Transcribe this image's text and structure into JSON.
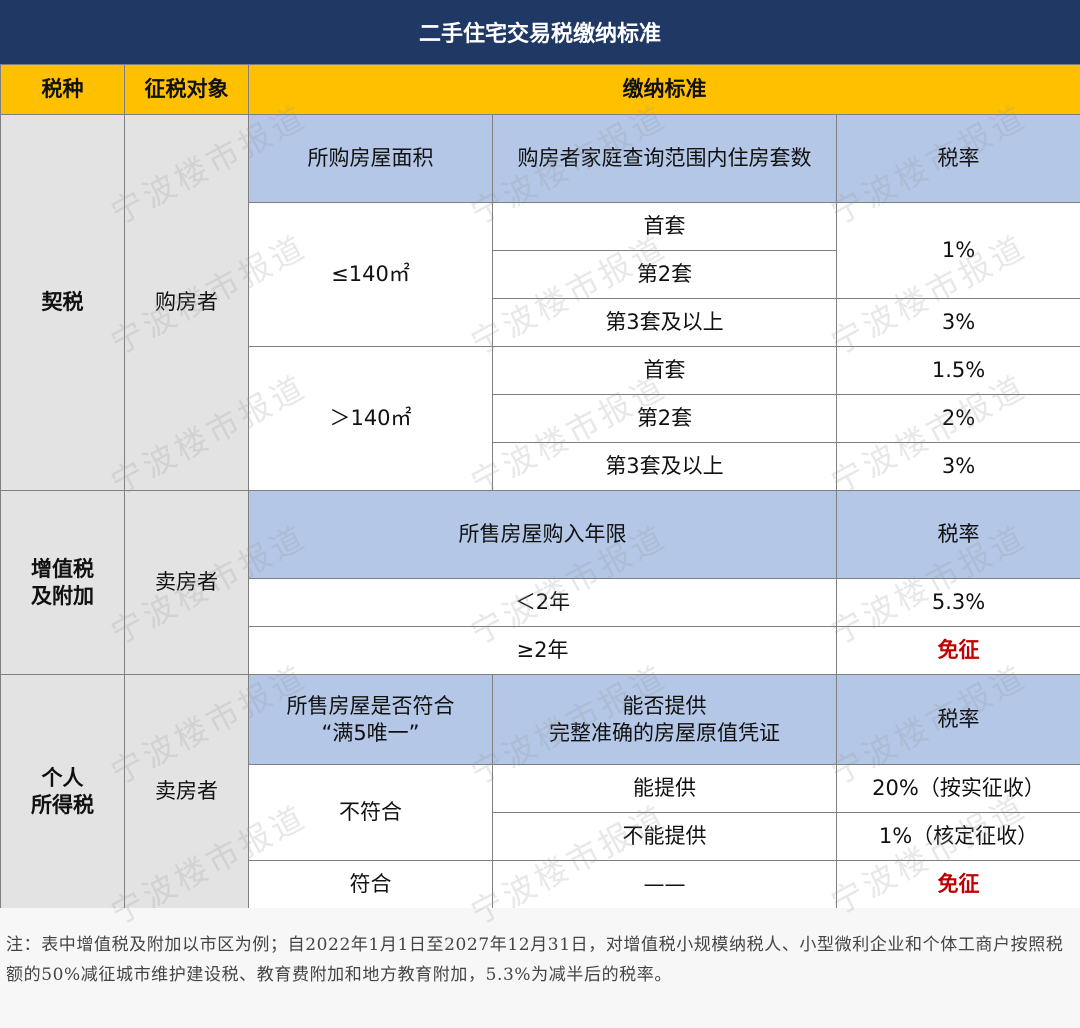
{
  "title": "二手住宅交易税缴纳标准",
  "header": {
    "tax_type": "税种",
    "target": "征税对象",
    "standard": "缴纳标准"
  },
  "deed_tax": {
    "name": "契税",
    "target": "购房者",
    "col_area": "所购房屋面积",
    "col_count": "购房者家庭查询范围内住房套数",
    "col_rate": "税率",
    "group1": {
      "area": "≤140㎡",
      "first": "首套",
      "second": "第2套",
      "third": "第3套及以上",
      "rate_12": "1%",
      "rate_3": "3%"
    },
    "group2": {
      "area": "＞140㎡",
      "first": "首套",
      "second": "第2套",
      "third": "第3套及以上",
      "rate_1": "1.5%",
      "rate_2": "2%",
      "rate_3": "3%"
    }
  },
  "vat": {
    "name_line1": "增值税",
    "name_line2": "及附加",
    "target": "卖房者",
    "col_years": "所售房屋购入年限",
    "col_rate": "税率",
    "row1_years": "＜2年",
    "row1_rate": "5.3%",
    "row2_years": "≥2年",
    "row2_rate": "免征"
  },
  "income_tax": {
    "name_line1": "个人",
    "name_line2": "所得税",
    "target": "卖房者",
    "col_cond_line1": "所售房屋是否符合",
    "col_cond_line2": "“满5唯一”",
    "col_proof_line1": "能否提供",
    "col_proof_line2": "完整准确的房屋原值凭证",
    "col_rate": "税率",
    "no_match": "不符合",
    "can_provide": "能提供",
    "rate_can": "20%（按实征收）",
    "cannot_provide": "不能提供",
    "rate_cannot": "1%（核定征收）",
    "match": "符合",
    "dash": "——",
    "rate_match": "免征"
  },
  "note": "注：表中增值税及附加以市区为例；自2022年1月1日至2027年12月31日，对增值税小规模纳税人、小型微利企业和个体工商户按照税额的50%减征城市维护建设税、教育费附加和地方教育附加，5.3%为减半后的税率。",
  "watermark": "宁波楼市报道"
}
